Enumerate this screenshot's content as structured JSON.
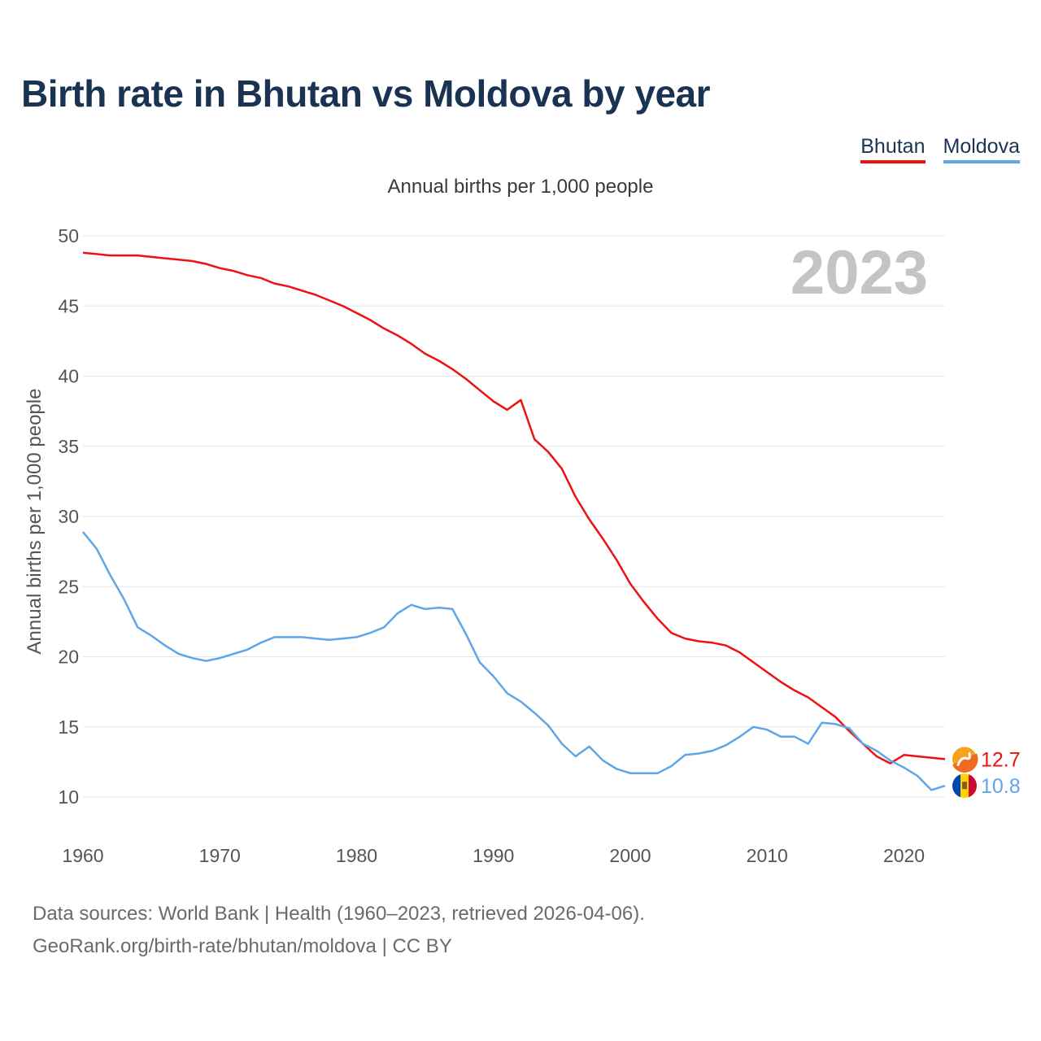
{
  "title": "Birth rate in Bhutan vs Moldova by year",
  "subtitle": "Annual births per 1,000 people",
  "legend": [
    {
      "label": "Bhutan",
      "color": "#ee1111"
    },
    {
      "label": "Moldova",
      "color": "#5ea6e8"
    }
  ],
  "year_display": "2023",
  "footer": {
    "line1": "Data sources: World Bank | Health (1960–2023, retrieved 2026-04-06).",
    "line2": "GeoRank.org/birth-rate/bhutan/moldova | CC BY"
  },
  "chart_data": {
    "type": "line",
    "title": "Birth rate in Bhutan vs Moldova by year",
    "xlabel": "",
    "ylabel": "Annual births per 1,000 people",
    "xlim": [
      1960,
      2023
    ],
    "ylim": [
      10,
      50
    ],
    "x_ticks": [
      1960,
      1970,
      1980,
      1990,
      2000,
      2010,
      2020
    ],
    "y_ticks": [
      10,
      15,
      20,
      25,
      30,
      35,
      40,
      45,
      50
    ],
    "grid": true,
    "x": [
      1960,
      1961,
      1962,
      1963,
      1964,
      1965,
      1966,
      1967,
      1968,
      1969,
      1970,
      1971,
      1972,
      1973,
      1974,
      1975,
      1976,
      1977,
      1978,
      1979,
      1980,
      1981,
      1982,
      1983,
      1984,
      1985,
      1986,
      1987,
      1988,
      1989,
      1990,
      1991,
      1992,
      1993,
      1994,
      1995,
      1996,
      1997,
      1998,
      1999,
      2000,
      2001,
      2002,
      2003,
      2004,
      2005,
      2006,
      2007,
      2008,
      2009,
      2010,
      2011,
      2012,
      2013,
      2014,
      2015,
      2016,
      2017,
      2018,
      2019,
      2020,
      2021,
      2022,
      2023
    ],
    "series": [
      {
        "name": "Bhutan",
        "color": "#ee1111",
        "end_label": "12.7",
        "values": [
          48.8,
          48.7,
          48.6,
          48.6,
          48.6,
          48.5,
          48.4,
          48.3,
          48.2,
          48.0,
          47.7,
          47.5,
          47.2,
          47.0,
          46.6,
          46.4,
          46.1,
          45.8,
          45.4,
          45.0,
          44.5,
          44.0,
          43.4,
          42.9,
          42.3,
          41.6,
          41.1,
          40.5,
          39.8,
          39.0,
          38.2,
          37.6,
          38.3,
          35.5,
          34.6,
          33.4,
          31.4,
          29.8,
          28.4,
          26.9,
          25.2,
          23.9,
          22.7,
          21.7,
          21.3,
          21.1,
          21.0,
          20.8,
          20.3,
          19.6,
          18.9,
          18.2,
          17.6,
          17.1,
          16.4,
          15.7,
          14.7,
          13.8,
          12.9,
          12.4,
          13.0,
          12.9,
          12.8,
          12.7
        ]
      },
      {
        "name": "Moldova",
        "color": "#5ea6e8",
        "end_label": "10.8",
        "values": [
          28.9,
          27.7,
          25.8,
          24.1,
          22.1,
          21.5,
          20.8,
          20.2,
          19.9,
          19.7,
          19.9,
          20.2,
          20.5,
          21.0,
          21.4,
          21.4,
          21.4,
          21.3,
          21.2,
          21.3,
          21.4,
          21.7,
          22.1,
          23.1,
          23.7,
          23.4,
          23.5,
          23.4,
          21.6,
          19.6,
          18.6,
          17.4,
          16.8,
          16.0,
          15.1,
          13.8,
          12.9,
          13.6,
          12.6,
          12.0,
          11.7,
          11.7,
          11.7,
          12.2,
          13.0,
          13.1,
          13.3,
          13.7,
          14.3,
          15.0,
          14.8,
          14.3,
          14.3,
          13.8,
          15.3,
          15.2,
          14.9,
          13.8,
          13.3,
          12.6,
          12.1,
          11.5,
          10.5,
          10.8
        ]
      }
    ]
  }
}
